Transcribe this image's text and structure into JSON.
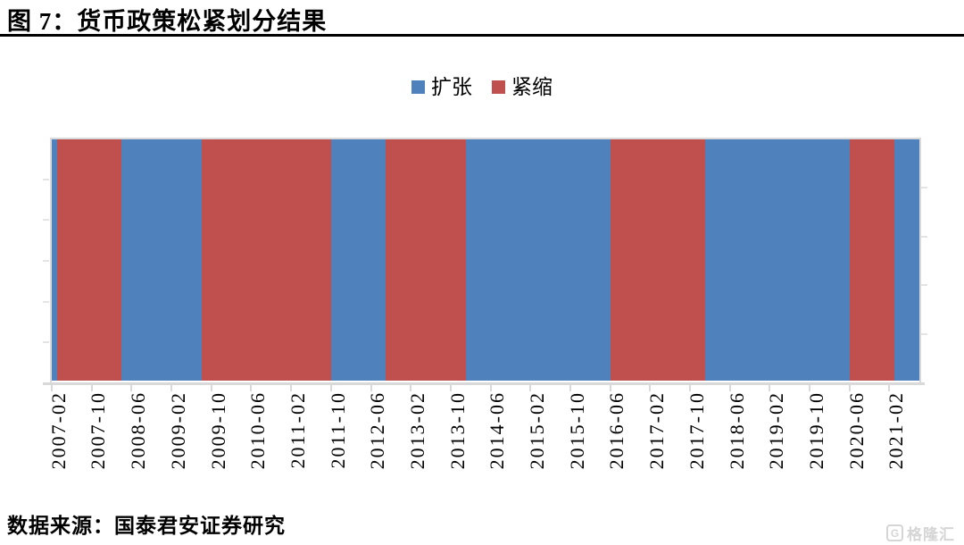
{
  "page": {
    "title": "图 7：货币政策松紧划分结果",
    "source": "数据来源：国泰君安证券研究",
    "watermark": {
      "icon": "G",
      "text": "格隆汇"
    }
  },
  "chart_data": {
    "type": "bar",
    "variant": "monthly-policy-regime-timeline",
    "title": "图 7：货币政策松紧划分结果",
    "legend_position": "top-center",
    "grid": false,
    "legend": [
      {
        "label": "扩张",
        "color": "#4F81BD"
      },
      {
        "label": "紧缩",
        "color": "#C0504D"
      }
    ],
    "x_axis": {
      "start": "2007-02",
      "end": "2021-07",
      "total_months": 174,
      "tick_interval_months": 8,
      "tick_labels": [
        "2007-02",
        "2007-10",
        "2008-06",
        "2009-02",
        "2009-10",
        "2010-06",
        "2011-02",
        "2011-10",
        "2012-06",
        "2013-02",
        "2013-10",
        "2014-06",
        "2015-02",
        "2015-10",
        "2016-06",
        "2017-02",
        "2017-10",
        "2018-06",
        "2019-02",
        "2019-10",
        "2020-06",
        "2021-02"
      ]
    },
    "y_axis": {
      "visible_labels": false,
      "full_height_columns": true
    },
    "segments": [
      {
        "regime": "扩张",
        "start": "2007-02",
        "end": "2007-02",
        "months": 1
      },
      {
        "regime": "紧缩",
        "start": "2007-03",
        "end": "2008-03",
        "months": 13
      },
      {
        "regime": "扩张",
        "start": "2008-04",
        "end": "2009-07",
        "months": 16
      },
      {
        "regime": "紧缩",
        "start": "2009-08",
        "end": "2011-09",
        "months": 26
      },
      {
        "regime": "扩张",
        "start": "2011-10",
        "end": "2012-08",
        "months": 11
      },
      {
        "regime": "紧缩",
        "start": "2012-09",
        "end": "2013-12",
        "months": 16
      },
      {
        "regime": "扩张",
        "start": "2014-01",
        "end": "2016-05",
        "months": 29
      },
      {
        "regime": "紧缩",
        "start": "2016-06",
        "end": "2017-12",
        "months": 19
      },
      {
        "regime": "扩张",
        "start": "2018-01",
        "end": "2020-05",
        "months": 29
      },
      {
        "regime": "紧缩",
        "start": "2020-06",
        "end": "2021-02",
        "months": 9
      },
      {
        "regime": "扩张",
        "start": "2021-03",
        "end": "2021-07",
        "months": 5
      }
    ]
  }
}
